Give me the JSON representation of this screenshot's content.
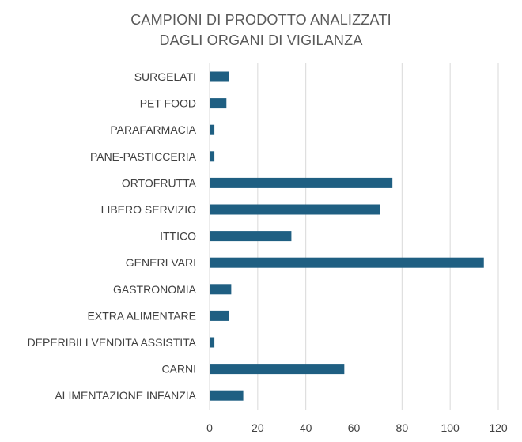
{
  "chart_data": {
    "type": "bar",
    "orientation": "horizontal",
    "title_lines": [
      "CAMPIONI DI PRODOTTO ANALIZZATI",
      "DAGLI ORGANI DI VIGILANZA"
    ],
    "categories": [
      "SURGELATI",
      "PET FOOD",
      "PARAFARMACIA",
      "PANE-PASTICCERIA",
      "ORTOFRUTTA",
      "LIBERO SERVIZIO",
      "ITTICO",
      "GENERI VARI",
      "GASTRONOMIA",
      "EXTRA ALIMENTARE",
      "DEPERIBILI VENDITA ASSISTITA",
      "CARNI",
      "ALIMENTAZIONE INFANZIA"
    ],
    "values": [
      8,
      7,
      2,
      2,
      76,
      71,
      34,
      114,
      9,
      8,
      2,
      56,
      14
    ],
    "xlim": [
      0,
      120
    ],
    "xticks": [
      "0",
      "20",
      "40",
      "60",
      "80",
      "100",
      "120"
    ],
    "xlabel": "",
    "ylabel": "",
    "grid": true,
    "bar_color": "#1f5f82",
    "grid_color": "#d9d9d9"
  }
}
